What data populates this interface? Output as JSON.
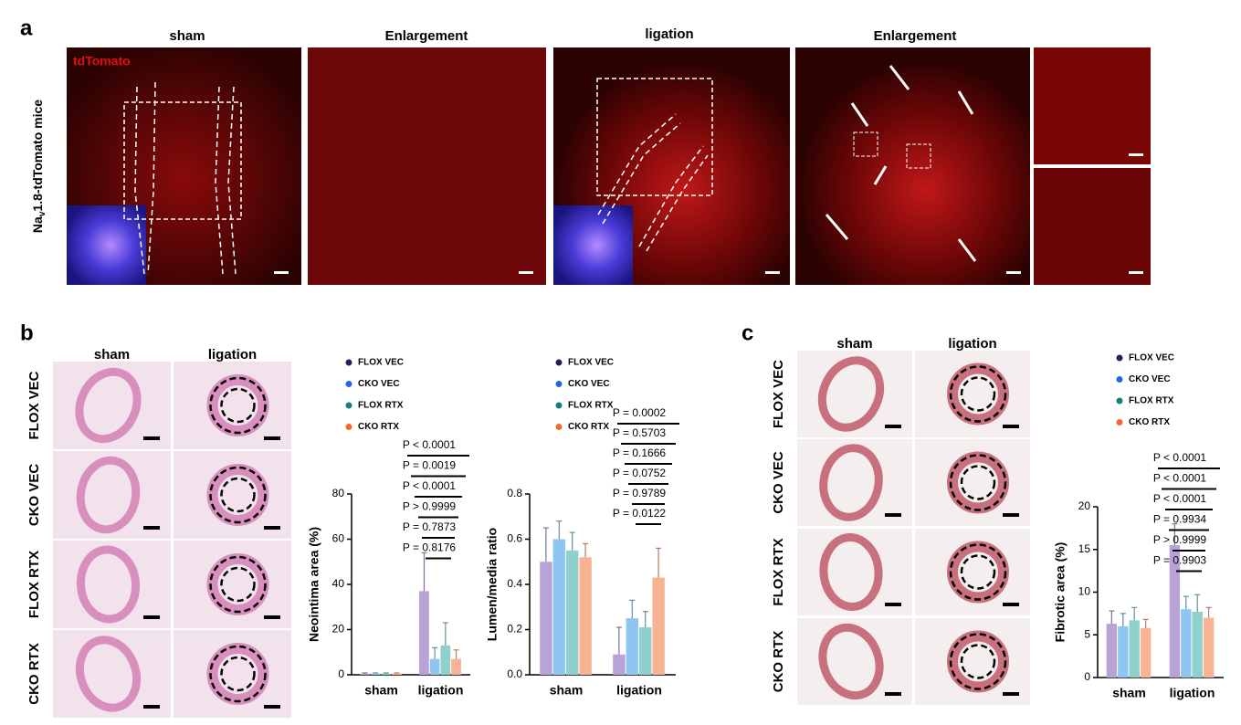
{
  "panel_a": {
    "letter": "a",
    "headers": [
      "sham",
      "Enlargement",
      "ligation",
      "Enlargement"
    ],
    "stain": "tdTomato",
    "side_label": [
      "Na",
      "v",
      "1.8-tdTomato mice"
    ]
  },
  "panel_b": {
    "letter": "b",
    "columns": [
      "sham",
      "ligation"
    ],
    "rows": [
      "FLOX VEC",
      "CKO VEC",
      "FLOX RTX",
      "CKO RTX"
    ]
  },
  "panel_c": {
    "letter": "c",
    "columns": [
      "sham",
      "ligation"
    ],
    "rows": [
      "FLOX VEC",
      "CKO VEC",
      "FLOX RTX",
      "CKO RTX"
    ]
  },
  "chart_data": [
    {
      "type": "bar",
      "y_label": "Neointima area  (%)",
      "categories": [
        "sham",
        "ligation"
      ],
      "ylim": [
        0,
        80
      ],
      "yticks": [
        0,
        20,
        40,
        60,
        80
      ],
      "series": [
        {
          "name": "FLOX VEC",
          "color": "#b9a3d6",
          "dot_color": "#2c1a5a",
          "values": [
            0.5,
            37
          ],
          "errors": [
            0.3,
            17
          ]
        },
        {
          "name": "CKO VEC",
          "color": "#8ec5f2",
          "dot_color": "#2166e0",
          "values": [
            0.5,
            7
          ],
          "errors": [
            0.3,
            5
          ]
        },
        {
          "name": "FLOX RTX",
          "color": "#8fd0cc",
          "dot_color": "#13807a",
          "values": [
            0.5,
            13
          ],
          "errors": [
            0.3,
            10
          ]
        },
        {
          "name": "CKO RTX",
          "color": "#f7b394",
          "dot_color": "#f2692a",
          "values": [
            0.5,
            7
          ],
          "errors": [
            0.3,
            4
          ]
        }
      ],
      "annotations": [
        "P < 0.0001",
        "P = 0.0019",
        "P < 0.0001",
        "P > 0.9999",
        "P = 0.7873",
        "P = 0.8176"
      ]
    },
    {
      "type": "bar",
      "y_label": "Lumen/media ratio",
      "categories": [
        "sham",
        "ligation"
      ],
      "ylim": [
        0,
        0.8
      ],
      "yticks": [
        {
          "value": 0,
          "label": "0.0"
        },
        0.2,
        0.4,
        0.6,
        0.8
      ],
      "series": [
        {
          "name": "FLOX VEC",
          "color": "#b9a3d6",
          "dot_color": "#2c1a5a",
          "values": [
            0.5,
            0.09
          ],
          "errors": [
            0.15,
            0.12
          ]
        },
        {
          "name": "CKO VEC",
          "color": "#8ec5f2",
          "dot_color": "#2166e0",
          "values": [
            0.6,
            0.25
          ],
          "errors": [
            0.08,
            0.08
          ]
        },
        {
          "name": "FLOX RTX",
          "color": "#8fd0cc",
          "dot_color": "#13807a",
          "values": [
            0.55,
            0.21
          ],
          "errors": [
            0.08,
            0.07
          ]
        },
        {
          "name": "CKO RTX",
          "color": "#f7b394",
          "dot_color": "#f2692a",
          "values": [
            0.52,
            0.43
          ],
          "errors": [
            0.06,
            0.13
          ]
        }
      ],
      "annotations": [
        "P = 0.0002",
        "P = 0.5703",
        "P = 0.1666",
        "P = 0.0752",
        "P = 0.9789",
        "P = 0.0122"
      ]
    },
    {
      "type": "bar",
      "y_label": "Fibrotic area (%)",
      "categories": [
        "sham",
        "ligation"
      ],
      "ylim": [
        0,
        20
      ],
      "yticks": [
        0,
        5,
        10,
        15,
        20
      ],
      "series": [
        {
          "name": "FLOX VEC",
          "color": "#b9a3d6",
          "dot_color": "#2c1a5a",
          "values": [
            6.3,
            15.5
          ],
          "errors": [
            1.5,
            2.5
          ]
        },
        {
          "name": "CKO VEC",
          "color": "#8ec5f2",
          "dot_color": "#2166e0",
          "values": [
            6,
            8
          ],
          "errors": [
            1.5,
            1.5
          ]
        },
        {
          "name": "FLOX RTX",
          "color": "#8fd0cc",
          "dot_color": "#13807a",
          "values": [
            6.7,
            7.7
          ],
          "errors": [
            1.5,
            2
          ]
        },
        {
          "name": "CKO RTX",
          "color": "#f7b394",
          "dot_color": "#f2692a",
          "values": [
            5.8,
            7
          ],
          "errors": [
            1,
            1.2
          ]
        }
      ],
      "annotations": [
        "P < 0.0001",
        "P < 0.0001",
        "P < 0.0001",
        "P = 0.9934",
        "P > 0.9999",
        "P = 0.9903"
      ]
    }
  ]
}
